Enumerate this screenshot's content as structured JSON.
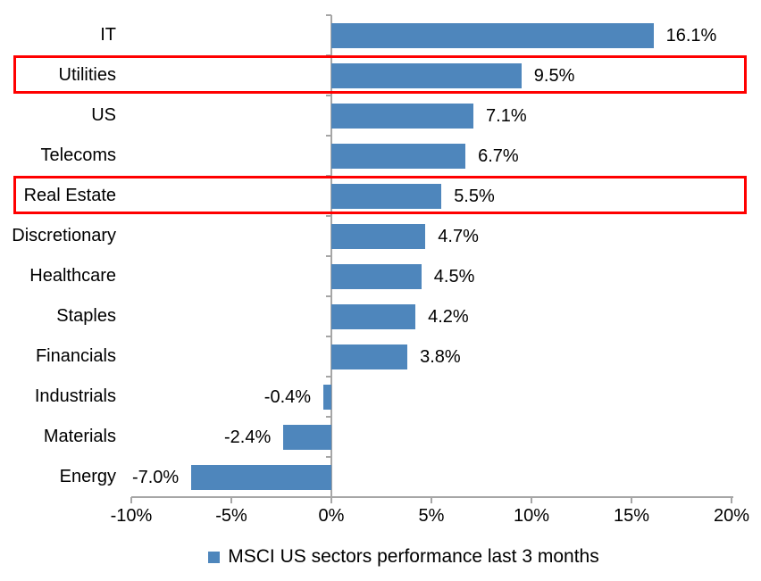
{
  "chart_data": {
    "type": "bar",
    "orientation": "horizontal",
    "title": "",
    "legend": "MSCI US sectors performance last 3 months",
    "legend_position": "bottom",
    "grid": false,
    "categories": [
      "IT",
      "Utilities",
      "US",
      "Telecoms",
      "Real Estate",
      "Discretionary",
      "Healthcare",
      "Staples",
      "Financials",
      "Industrials",
      "Materials",
      "Energy"
    ],
    "values": [
      16.1,
      9.5,
      7.1,
      6.7,
      5.5,
      4.7,
      4.5,
      4.2,
      3.8,
      -0.4,
      -2.4,
      -7.0
    ],
    "value_labels": [
      "16.1%",
      "9.5%",
      "7.1%",
      "6.7%",
      "5.5%",
      "4.7%",
      "4.5%",
      "4.2%",
      "3.8%",
      "-0.4%",
      "-2.4%",
      "-7.0%"
    ],
    "xlim": [
      -10,
      20
    ],
    "xticks": [
      -10,
      -5,
      0,
      5,
      10,
      15,
      20
    ],
    "xtick_labels": [
      "-10%",
      "-5%",
      "0%",
      "5%",
      "10%",
      "15%",
      "20%"
    ],
    "highlighted_categories": [
      "Utilities",
      "Real Estate"
    ],
    "colors": {
      "bar": "#4E86BC",
      "highlight_box": "#FF0000",
      "axis": "#A6A6A6",
      "text": "#000000",
      "background": "#FFFFFF"
    }
  }
}
